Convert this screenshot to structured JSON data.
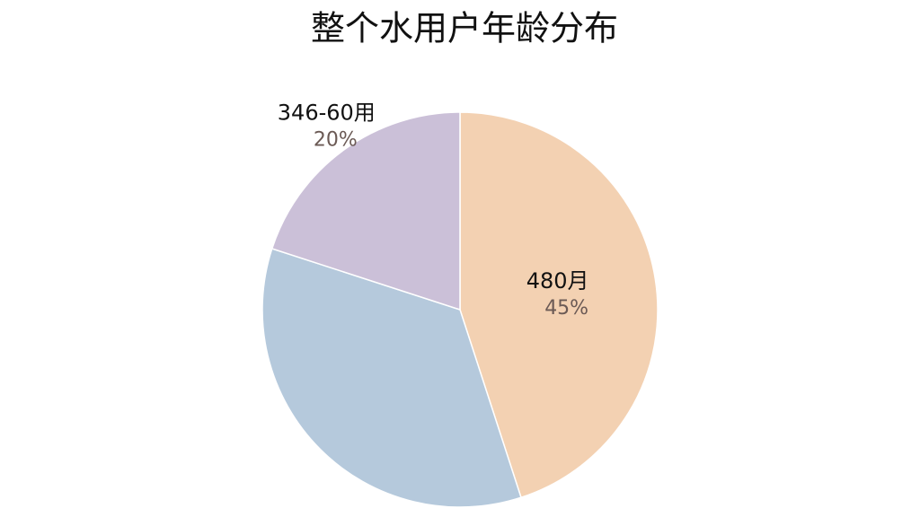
{
  "chart_data": {
    "type": "pie",
    "title": "整个水用户年龄分布",
    "categories": [
      "480月",
      null,
      "346-60用"
    ],
    "values": [
      45,
      35,
      20
    ],
    "value_labels": [
      "45%",
      null,
      "20%"
    ],
    "colors": [
      "#f3d1b2",
      "#b5c9dc",
      "#cbc0d8"
    ]
  }
}
